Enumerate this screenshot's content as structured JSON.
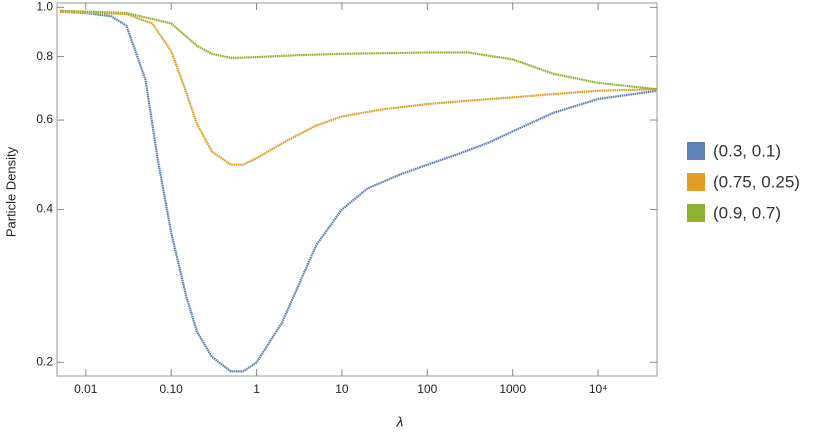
{
  "chart_data": {
    "type": "line",
    "xlabel": "λ",
    "ylabel": "Particle Density",
    "xscale": "log",
    "yscale": "log",
    "xlim": [
      0.0046,
      49000
    ],
    "ylim": [
      0.188,
      1.02
    ],
    "xticks": [
      0.01,
      {
        "value": 0.1,
        "label": "0.10"
      },
      1,
      10,
      100,
      1000,
      {
        "value": 10000,
        "label": "10⁴"
      }
    ],
    "yticks": [
      0.2,
      0.4,
      0.6,
      0.8,
      {
        "value": 1,
        "label": "1.0"
      }
    ],
    "legend": "right",
    "series": [
      {
        "name": "(0.3, 0.1)",
        "color": "#5e81b5",
        "x": [
          0.005,
          0.01,
          0.02,
          0.03,
          0.05,
          0.07,
          0.1,
          0.15,
          0.2,
          0.3,
          0.5,
          0.7,
          1,
          2,
          3,
          5,
          10,
          20,
          50,
          100,
          200,
          500,
          1000,
          3000,
          10000,
          49000
        ],
        "values": [
          0.98,
          0.975,
          0.96,
          0.92,
          0.72,
          0.5,
          0.36,
          0.27,
          0.23,
          0.205,
          0.192,
          0.192,
          0.2,
          0.24,
          0.28,
          0.34,
          0.4,
          0.44,
          0.47,
          0.49,
          0.51,
          0.54,
          0.57,
          0.62,
          0.66,
          0.685
        ]
      },
      {
        "name": "(0.75, 0.25)",
        "color": "#e19c24",
        "x": [
          0.005,
          0.03,
          0.06,
          0.1,
          0.15,
          0.2,
          0.3,
          0.5,
          0.7,
          1,
          2,
          3,
          5,
          10,
          30,
          100,
          300,
          1000,
          3000,
          10000,
          49000
        ],
        "values": [
          0.98,
          0.97,
          0.93,
          0.82,
          0.68,
          0.59,
          0.52,
          0.49,
          0.49,
          0.505,
          0.54,
          0.56,
          0.585,
          0.61,
          0.63,
          0.645,
          0.655,
          0.665,
          0.675,
          0.685,
          0.69
        ]
      },
      {
        "name": "(0.9, 0.7)",
        "color": "#8fb032",
        "x": [
          0.005,
          0.03,
          0.1,
          0.2,
          0.3,
          0.5,
          1,
          3,
          10,
          100,
          300,
          1000,
          3000,
          10000,
          49000
        ],
        "values": [
          0.985,
          0.975,
          0.93,
          0.84,
          0.81,
          0.795,
          0.798,
          0.805,
          0.81,
          0.815,
          0.815,
          0.79,
          0.74,
          0.71,
          0.69
        ]
      }
    ]
  }
}
